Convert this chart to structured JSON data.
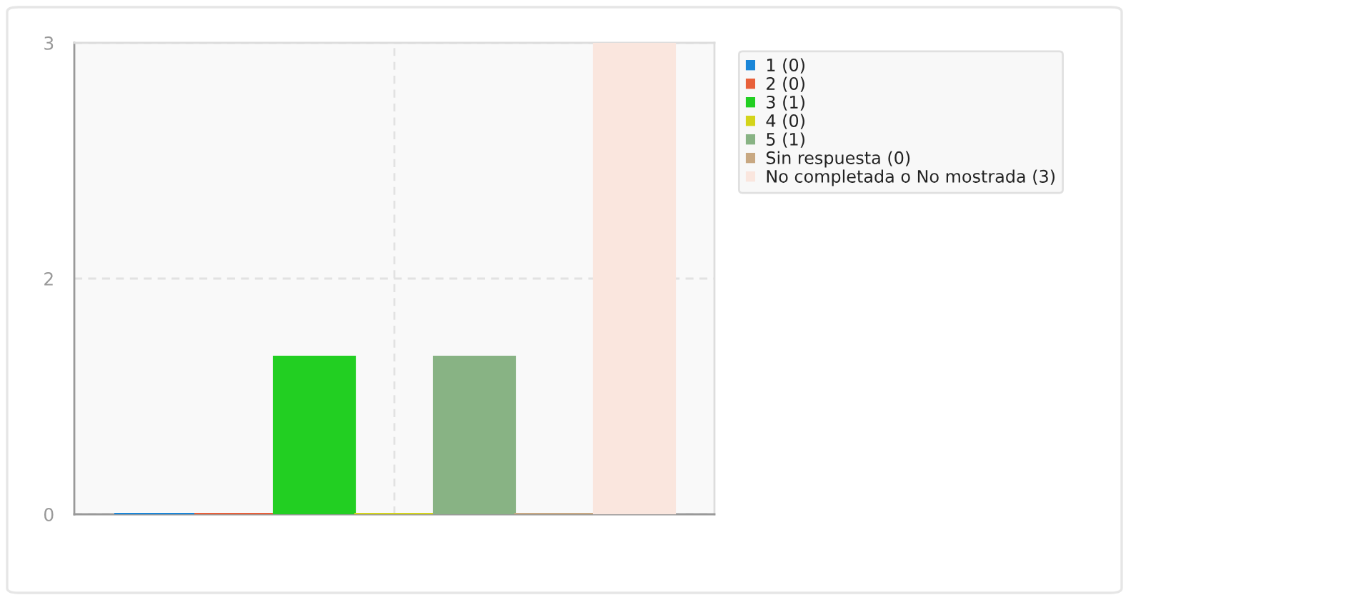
{
  "chart_data": {
    "type": "bar",
    "categories": [
      null
    ],
    "series": [
      {
        "name": "1 (0)",
        "color": "#1a86d8",
        "values": [
          0
        ]
      },
      {
        "name": "2 (0)",
        "color": "#e8603a",
        "values": [
          0
        ]
      },
      {
        "name": "3 (1)",
        "color": "#22cf22",
        "values": [
          1
        ]
      },
      {
        "name": "4 (0)",
        "color": "#d4d41a",
        "values": [
          0
        ]
      },
      {
        "name": "5 (1)",
        "color": "#88b384",
        "values": [
          1
        ]
      },
      {
        "name": "Sin respuesta (0)",
        "color": "#c8a882",
        "values": [
          0
        ]
      },
      {
        "name": "No completada o No mostrada (3)",
        "color": "#fae6de",
        "values": [
          3
        ]
      }
    ],
    "ylim": [
      0,
      3
    ],
    "yticks": [
      0,
      {
        "value": 1.5,
        "label": "2"
      },
      3
    ],
    "grid": true,
    "legend": "top right"
  }
}
